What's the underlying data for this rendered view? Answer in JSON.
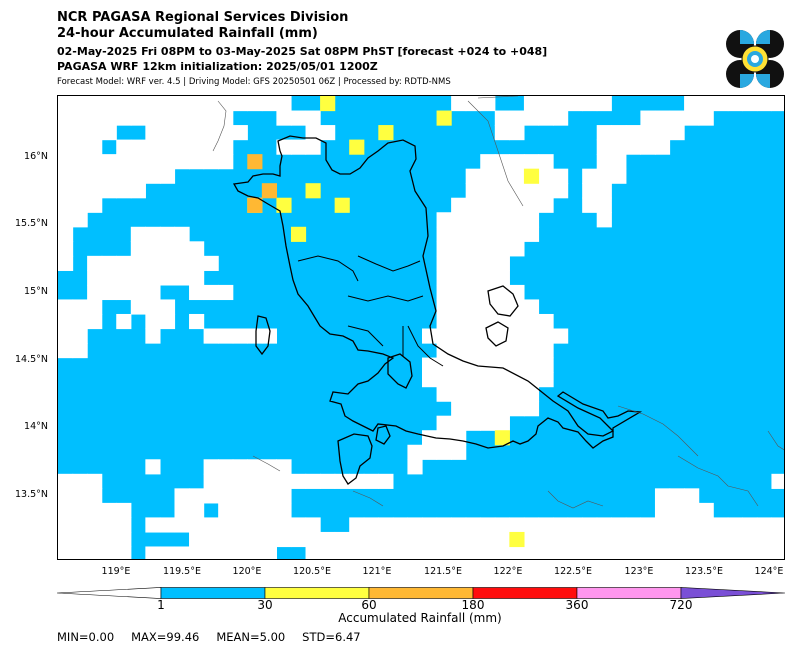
{
  "header": {
    "title": "NCR PAGASA Regional Services Division",
    "subtitle": "24-hour Accumulated Rainfall (mm)",
    "period": "02-May-2025 Fri 08PM to 03-May-2025 Sat 08PM PhST [forecast +024 to +048]",
    "initialization": "PAGASA WRF 12km initialization: 2025/05/01 1200Z",
    "model_info": "Forecast Model: WRF ver. 4.5 | Driving Model: GFS 20250501 06Z | Processed by: RDTD-NMS"
  },
  "logo": {
    "name": "pagasa-seal",
    "colors": [
      "#111111",
      "#29a8e0",
      "#ffe135"
    ]
  },
  "map": {
    "lat_ticks": [
      "16°N",
      "15.5°N",
      "15°N",
      "14.5°N",
      "14°N",
      "13.5°N"
    ],
    "lon_ticks": [
      "119°E",
      "119.5°E",
      "120°E",
      "120.5°E",
      "121°E",
      "121.5°E",
      "122°E",
      "122.5°E",
      "123°E",
      "123.5°E",
      "124°E"
    ],
    "colors": {
      "light": "#00bfff",
      "yellow": "#ffff40",
      "orange": "#ffb833",
      "background": "#ffffff"
    }
  },
  "colorbar": {
    "ticks": [
      "1",
      "30",
      "60",
      "180",
      "360",
      "720"
    ],
    "colors": [
      "#ffffff",
      "#00bfff",
      "#ffff40",
      "#ffb833",
      "#ff0d0d",
      "#ff96ee",
      "#7a4fd6"
    ],
    "label": "Accumulated Rainfall (mm)"
  },
  "stats": {
    "text": "MIN=0.00   MAX=99.46   MEAN=5.00   STD=6.47",
    "min": 0.0,
    "max": 99.46,
    "mean": 5.0,
    "std": 6.47
  }
}
